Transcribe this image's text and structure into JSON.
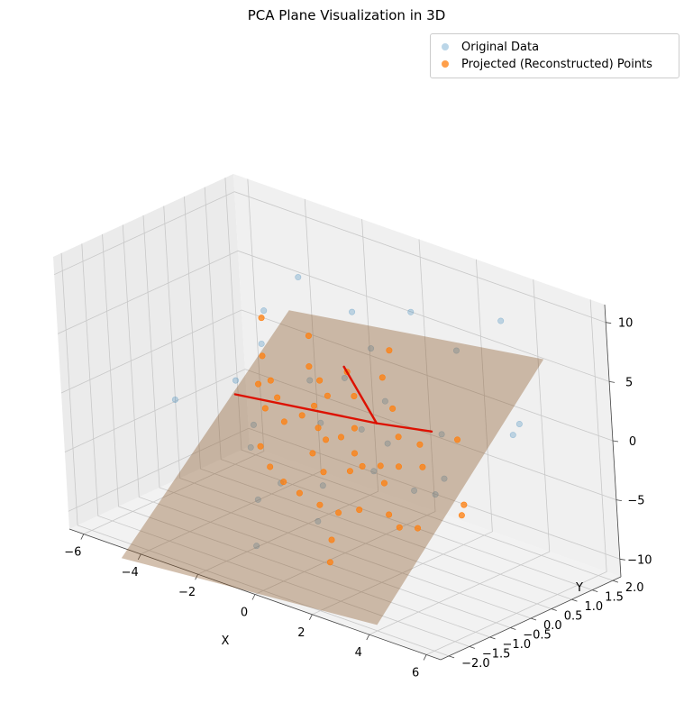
{
  "colors": {
    "original": "#1f77b4",
    "projected": "#ff7f0e",
    "plane": "#8b5a2b",
    "vectors": "#dd1100",
    "pane": "#f0f0f0",
    "grid": "#c8c8c8"
  },
  "chart_data": {
    "type": "scatter",
    "projection": "3d",
    "title": "PCA Plane Visualization in 3D",
    "xlabel": "X",
    "ylabel": "Y",
    "zlabel": "",
    "xlim": [
      -6.5,
      6.5
    ],
    "ylim": [
      -2.2,
      2.2
    ],
    "zlim": [
      -11.5,
      11.5
    ],
    "xticks": [
      -6,
      -4,
      -2,
      0,
      2,
      4,
      6
    ],
    "yticks": [
      -2.0,
      -1.5,
      -1.0,
      -0.5,
      0.0,
      0.5,
      1.0,
      1.5,
      2.0
    ],
    "yticklabels": [
      "−2.0",
      "−1.5",
      "−1.0",
      "−0.5",
      "0.0",
      "0.5",
      "1.0",
      "1.5",
      "2.0"
    ],
    "xticklabels": [
      "−6",
      "−4",
      "−2",
      "0",
      "2",
      "4",
      "6"
    ],
    "zticks": [
      -10,
      -5,
      0,
      5,
      10
    ],
    "zticklabels": [
      "−10",
      "−5",
      "0",
      "5",
      "10"
    ],
    "grid": true,
    "legend_position": "upper right",
    "plane": {
      "corners": [
        [
          -4.5,
          2.0,
          2.0
        ],
        [
          4.5,
          2.0,
          5.5
        ],
        [
          4.0,
          -2.0,
          -11.0
        ],
        [
          -5.0,
          -2.0,
          -13.0
        ]
      ]
    },
    "principal_axes": {
      "origin": [
        0.8,
        0.4,
        -0.5
      ],
      "vectors": [
        [
          -5.0,
          0.0,
          -1.8
        ],
        [
          -1.2,
          0.1,
          3.6
        ],
        [
          1.5,
          0.3,
          0.1
        ]
      ]
    },
    "series": [
      {
        "name": "Original Data",
        "points": [
          [
            -4.2,
            1.2,
            3.5
          ],
          [
            -2.6,
            1.0,
            8.0
          ],
          [
            -1.5,
            1.5,
            5.2
          ],
          [
            0.3,
            1.7,
            6.4
          ],
          [
            1.4,
            2.0,
            3.6
          ],
          [
            3.2,
            1.9,
            7.8
          ],
          [
            -3.3,
            0.2,
            -3.8
          ],
          [
            -5.0,
            -0.5,
            -2.0
          ],
          [
            -2.4,
            -0.4,
            -8.4
          ],
          [
            -1.8,
            -0.9,
            -11.0
          ],
          [
            2.2,
            1.0,
            -1.2
          ],
          [
            2.8,
            0.6,
            -3.8
          ],
          [
            4.4,
            1.4,
            0.9
          ],
          [
            4.9,
            0.9,
            1.2
          ],
          [
            1.0,
            0.5,
            -2.2
          ],
          [
            -1.8,
            0.6,
            0.6
          ],
          [
            -0.9,
            0.2,
            -1.6
          ],
          [
            0.4,
            0.3,
            -1.2
          ],
          [
            1.5,
            -0.2,
            -3.0
          ],
          [
            -0.2,
            -0.3,
            -5.5
          ],
          [
            -2.7,
            -0.3,
            -4.4
          ],
          [
            -1.4,
            -0.5,
            -6.0
          ],
          [
            0.3,
            -0.8,
            -7.3
          ],
          [
            -3.6,
            0.7,
            2.0
          ],
          [
            0.7,
            0.7,
            0.8
          ],
          [
            -0.6,
            1.3,
            3.2
          ],
          [
            2.3,
            0.2,
            -4.6
          ],
          [
            -1.0,
            0.9,
            1.0
          ],
          [
            3.2,
            0.1,
            -4.0
          ],
          [
            -4.0,
            0.3,
            -0.8
          ]
        ]
      },
      {
        "name": "Projected (Reconstructed) Points",
        "points": [
          [
            -4.3,
            1.2,
            2.8
          ],
          [
            -3.9,
            0.9,
            0.4
          ],
          [
            -3.2,
            0.6,
            -0.6
          ],
          [
            -2.7,
            0.4,
            -1.3
          ],
          [
            -3.0,
            0.3,
            -2.3
          ],
          [
            -2.2,
            0.2,
            -2.6
          ],
          [
            -1.7,
            0.3,
            -1.8
          ],
          [
            -1.4,
            0.4,
            -0.9
          ],
          [
            -1.0,
            0.2,
            -2.1
          ],
          [
            -0.6,
            0.1,
            -2.6
          ],
          [
            -0.2,
            0.2,
            -2.2
          ],
          [
            0.4,
            0.1,
            -2.9
          ],
          [
            0.8,
            0.0,
            -3.5
          ],
          [
            1.3,
            0.1,
            -3.2
          ],
          [
            1.7,
            -0.1,
            -4.0
          ],
          [
            -2.5,
            -0.2,
            -4.3
          ],
          [
            -1.9,
            -0.4,
            -5.2
          ],
          [
            -1.3,
            -0.5,
            -5.8
          ],
          [
            -0.6,
            -0.6,
            -6.0
          ],
          [
            0.1,
            -0.6,
            -6.4
          ],
          [
            0.6,
            -0.5,
            -6.8
          ],
          [
            1.2,
            -0.4,
            -6.2
          ],
          [
            2.1,
            -0.3,
            -6.0
          ],
          [
            2.6,
            -0.4,
            -6.5
          ],
          [
            3.1,
            -0.3,
            -6.3
          ],
          [
            -2.1,
            0.8,
            1.2
          ],
          [
            -1.6,
            0.7,
            0.6
          ],
          [
            -0.9,
            0.9,
            1.6
          ],
          [
            -0.4,
            0.7,
            0.3
          ],
          [
            0.2,
            1.0,
            1.9
          ],
          [
            -0.1,
            1.4,
            3.3
          ],
          [
            0.8,
            0.8,
            0.1
          ],
          [
            1.4,
            0.5,
            -1.3
          ],
          [
            2.0,
            0.6,
            -1.6
          ],
          [
            2.5,
            0.3,
            -2.6
          ],
          [
            0.5,
            -0.1,
            -4.0
          ],
          [
            -0.3,
            -0.2,
            -4.6
          ],
          [
            0.9,
            -0.9,
            -8.2
          ],
          [
            1.1,
            -1.1,
            -9.6
          ],
          [
            -0.8,
            -0.1,
            -3.6
          ],
          [
            -1.2,
            0.6,
            -0.2
          ],
          [
            3.9,
            0.3,
            -4.6
          ],
          [
            4.1,
            0.1,
            -5.0
          ],
          [
            -3.5,
            0.5,
            -1.0
          ],
          [
            0.0,
            0.4,
            -1.6
          ],
          [
            1.8,
            0.2,
            -3.0
          ],
          [
            -2.8,
            1.3,
            2.4
          ],
          [
            2.9,
            0.9,
            -0.9
          ]
        ]
      }
    ]
  }
}
